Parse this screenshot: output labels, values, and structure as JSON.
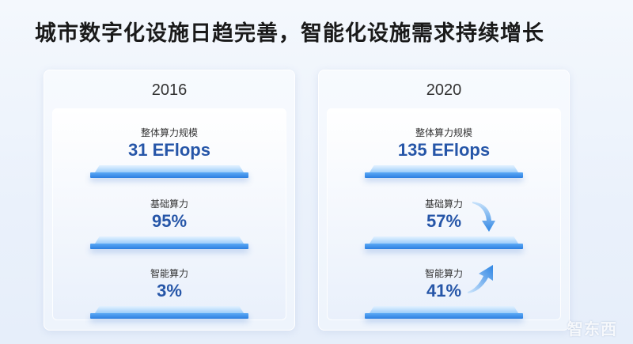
{
  "title": "城市数字化设施日趋完善，智能化设施需求持续增长",
  "panels": [
    {
      "year": "2016",
      "metrics": [
        {
          "label": "整体算力规模",
          "value": "31 EFlops"
        },
        {
          "label": "基础算力",
          "value": "95%"
        },
        {
          "label": "智能算力",
          "value": "3%"
        }
      ]
    },
    {
      "year": "2020",
      "metrics": [
        {
          "label": "整体算力规模",
          "value": "135 EFlops"
        },
        {
          "label": "基础算力",
          "value": "57%",
          "trend": "down"
        },
        {
          "label": "智能算力",
          "value": "41%",
          "trend": "up"
        }
      ]
    }
  ],
  "watermark": "智东西",
  "colors": {
    "value_text": "#2656a8",
    "arrow": "#3a8ee6"
  }
}
